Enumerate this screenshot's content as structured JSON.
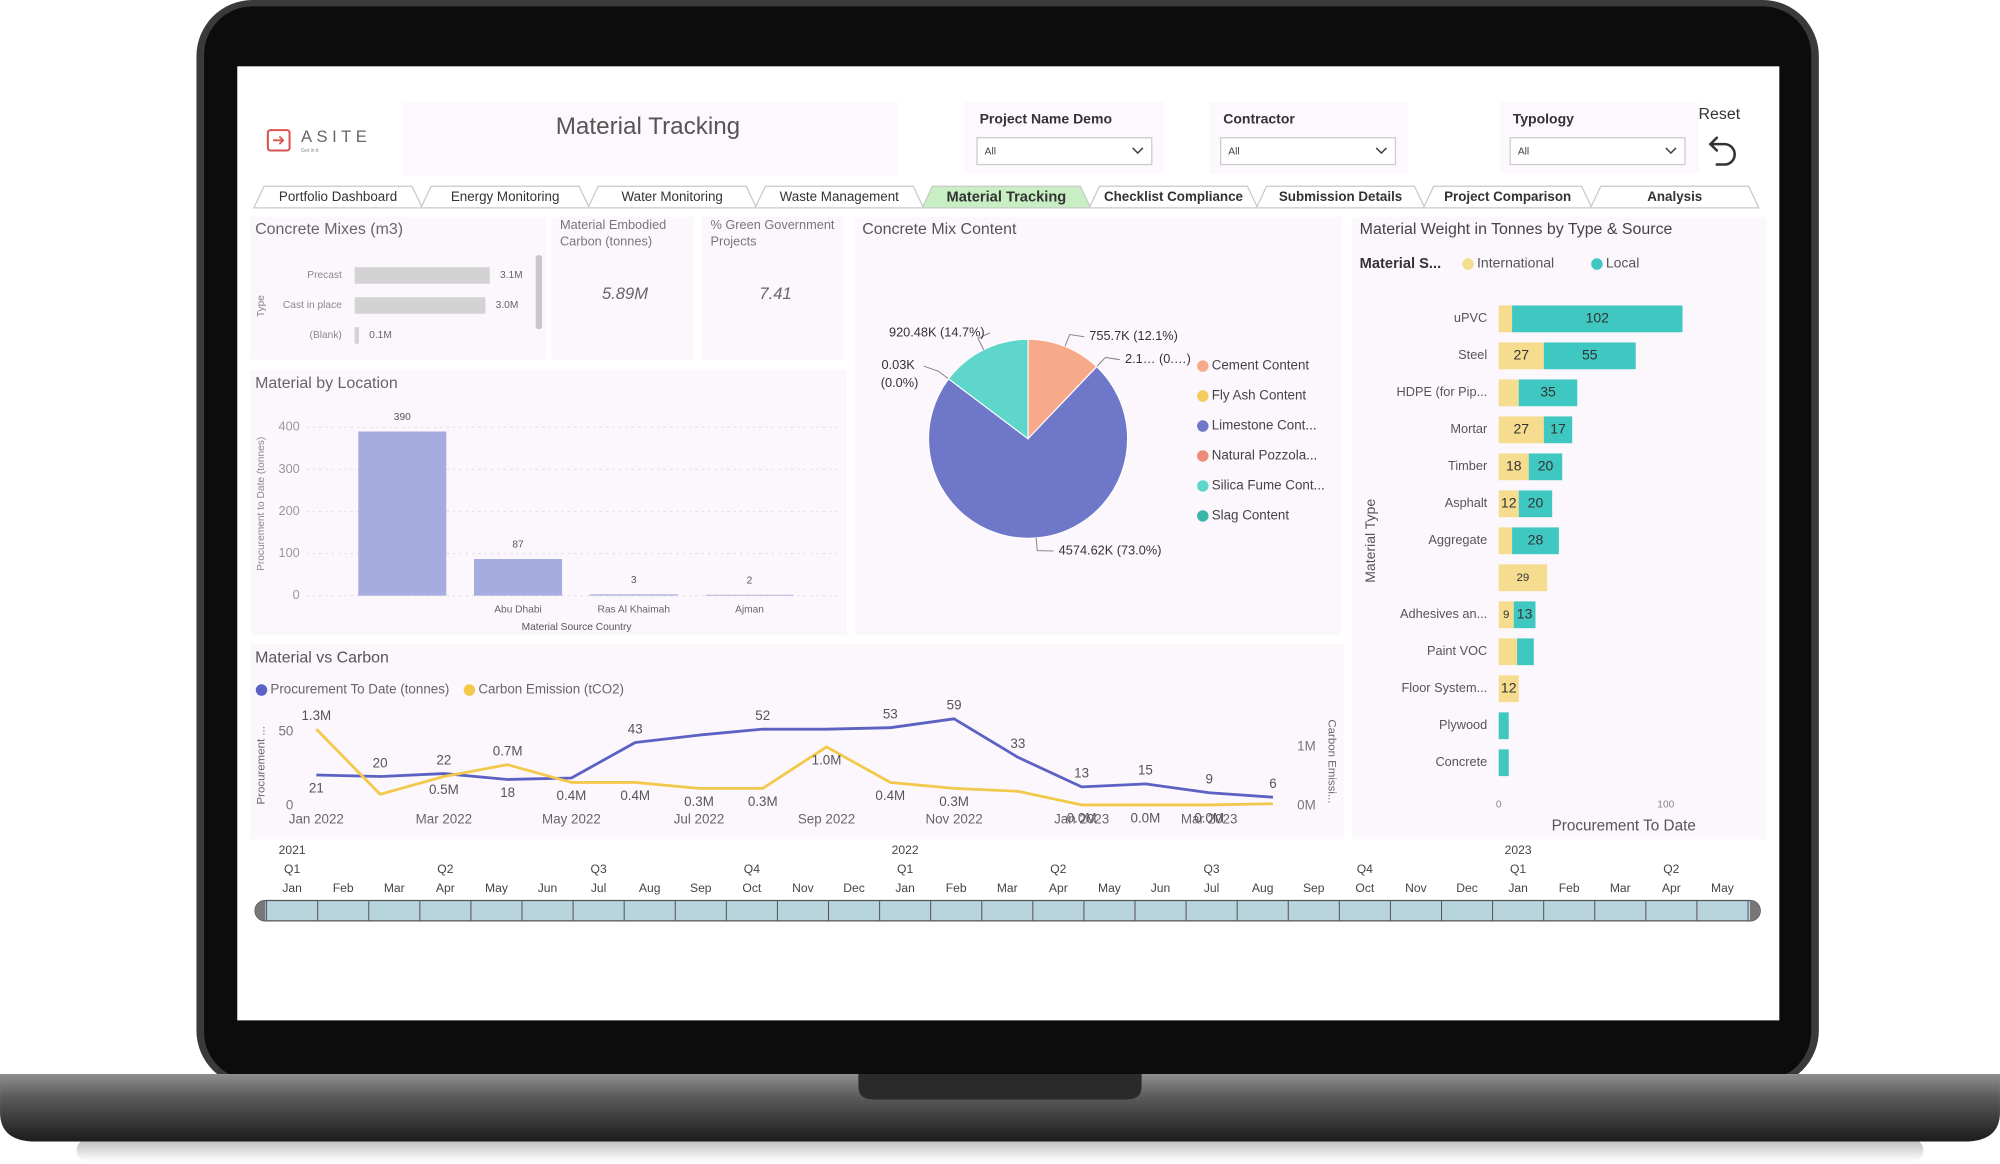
{
  "header": {
    "logo": "ASITE",
    "tagline": "Get in it",
    "title": "Material Tracking",
    "reset": "Reset"
  },
  "filters": [
    {
      "label": "Project Name Demo",
      "value": "All"
    },
    {
      "label": "Contractor",
      "value": "All"
    },
    {
      "label": "Typology",
      "value": "All"
    }
  ],
  "tabs": [
    "Portfolio Dashboard",
    "Energy Monitoring",
    "Water Monitoring",
    "Waste Management",
    "Material Tracking",
    "Checklist Compliance",
    "Submission Details",
    "Project Comparison",
    "Analysis"
  ],
  "active_tab": 4,
  "cards": [
    {
      "label": "Material Embodied Carbon (tonnes)",
      "value": "5.89M"
    },
    {
      "label": "% Green Government Projects",
      "value": "7.41"
    }
  ],
  "chart_data": [
    {
      "type": "hbar",
      "title": "Concrete Mixes (m3)",
      "y_label": "Type",
      "categories": [
        "Precast",
        "Cast in place",
        "(Blank)"
      ],
      "values": [
        3.1,
        3.0,
        0.1
      ],
      "value_labels": [
        "3.1M",
        "3.0M",
        "0.1M"
      ],
      "color": "#d3d3d3"
    },
    {
      "type": "bar",
      "title": "Material by Location",
      "x_label": "Material Source Country",
      "y_label": "Procurement to Date (tonnes)",
      "categories": [
        null,
        "Abu Dhabi",
        "Ras Al Khaimah",
        "Ajman"
      ],
      "values": [
        390,
        87,
        3,
        2
      ],
      "color": "#a6abe0",
      "ylim": [
        0,
        400
      ],
      "yticks": [
        0,
        100,
        200,
        300,
        400
      ],
      "grid": true
    },
    {
      "type": "pie",
      "title": "Concrete Mix Content",
      "categories": [
        "Cement Content",
        "Fly Ash Content",
        "Limestone Cont...",
        "Natural Pozzola...",
        "Silica Fume Cont...",
        "Slag Content"
      ],
      "values": [
        755.7,
        2.1,
        4574.62,
        0.03,
        920.48,
        0
      ],
      "value_labels": [
        "755.7K (12.1%)",
        "2.1… (0.…)",
        "4574.62K (73.0%)",
        "0.03K (0.0%)",
        "920.48K (14.7%)",
        null
      ],
      "colors": [
        "#f7a98a",
        "#f2cd5c",
        "#6f77c9",
        "#ee8a7a",
        "#5fd6cc",
        "#3bb5a8"
      ]
    },
    {
      "type": "stacked-hbar",
      "title": "Material Weight in Tonnes by Type & Source",
      "legend_title": "Material S...",
      "y_label": "Material Type",
      "x_label": "Procurement To Date",
      "categories": [
        "uPVC",
        "Steel",
        "HDPE (for Pip...",
        "Mortar",
        "Timber",
        "Asphalt",
        "Aggregate",
        null,
        "Adhesives an...",
        "Paint VOC",
        "Floor System...",
        "Plywood",
        "Concrete"
      ],
      "series": [
        {
          "name": "International",
          "color": "#f5dc8f",
          "values": [
            8,
            27,
            12,
            27,
            18,
            12,
            8,
            29,
            9,
            11,
            12,
            null,
            null
          ],
          "value_labels": [
            null,
            "27",
            null,
            "27",
            "18",
            "12",
            null,
            "29",
            "9",
            null,
            "12",
            null,
            null
          ]
        },
        {
          "name": "Local",
          "color": "#3fc7c1",
          "values": [
            102,
            55,
            35,
            17,
            20,
            20,
            28,
            null,
            13,
            10,
            null,
            6,
            6
          ],
          "value_labels": [
            "102",
            "55",
            "35",
            "17",
            "20",
            "20",
            "28",
            null,
            "13",
            null,
            null,
            null,
            null
          ]
        }
      ],
      "xlim": [
        0,
        150
      ],
      "xticks": [
        0,
        100
      ]
    },
    {
      "type": "line",
      "title": "Material vs Carbon",
      "y_label": "Procurement ...",
      "y2_label": "Carbon Emissi...",
      "categories": [
        "Jan 2022",
        null,
        "Mar 2022",
        null,
        "May 2022",
        null,
        "Jul 2022",
        null,
        "Sep 2022",
        null,
        "Nov 2022",
        null,
        "Jan 2023",
        null,
        "Mar 2023",
        null
      ],
      "series": [
        {
          "name": "Procurement To Date (tonnes)",
          "color": "#5b62c4",
          "values": [
            21,
            20,
            22,
            18,
            19,
            43,
            48,
            52,
            52,
            53,
            59,
            33,
            13,
            15,
            9,
            6
          ],
          "value_labels": [
            "21",
            "20",
            "22",
            "18",
            null,
            "43",
            null,
            "52",
            null,
            "53",
            "59",
            "33",
            "13",
            "15",
            "9",
            "6"
          ]
        },
        {
          "name": "Carbon Emission (tCO2)",
          "color": "#f2c94c",
          "axis": "y2",
          "values": [
            1300000,
            200000,
            500000,
            700000,
            400000,
            400000,
            300000,
            300000,
            1000000,
            400000,
            300000,
            250000,
            20000,
            20000,
            20000,
            40000
          ],
          "value_labels": [
            "1.3M",
            null,
            "0.5M",
            "0.7M",
            "0.4M",
            "0.4M",
            "0.3M",
            "0.3M",
            "1.0M",
            "0.4M",
            "0.3M",
            null,
            "0.0M",
            "0.0M",
            "0.0M",
            null
          ]
        }
      ],
      "ylim": [
        0,
        60
      ],
      "yticks": [
        0,
        50
      ],
      "y2lim": [
        0,
        1500000
      ],
      "y2ticks": [
        {
          "value": 0,
          "label": "0M"
        },
        {
          "value": 1000000,
          "label": "1M"
        }
      ]
    }
  ],
  "timeline": {
    "years": [
      "2021",
      "2022",
      "2023"
    ],
    "quarters": [
      "Q1",
      "Q2",
      "Q3",
      "Q4",
      "Q1",
      "Q2",
      "Q3",
      "Q4",
      "Q1",
      "Q2"
    ],
    "months": [
      "Jan",
      "Feb",
      "Mar",
      "Apr",
      "May",
      "Jun",
      "Jul",
      "Aug",
      "Sep",
      "Oct",
      "Nov",
      "Dec",
      "Jan",
      "Feb",
      "Mar",
      "Apr",
      "May",
      "Jun",
      "Jul",
      "Aug",
      "Sep",
      "Oct",
      "Nov",
      "Dec",
      "Jan",
      "Feb",
      "Mar",
      "Apr",
      "May"
    ]
  }
}
